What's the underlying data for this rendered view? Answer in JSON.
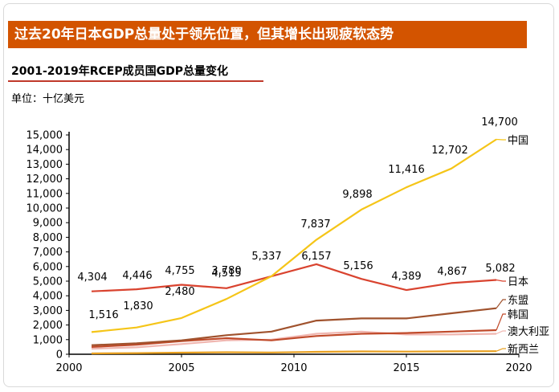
{
  "banner_title": "过去20年日本GDP总量处于领先位置，但其增长出现疲软态势",
  "subtitle": "2001-2019年RCEP成员国GDP总量变化",
  "unit_label": "单位：十亿美元",
  "chart_data": {
    "type": "line",
    "title": "2001-2019年RCEP成员国GDP总量变化",
    "ylabel": "单位：十亿美元",
    "xlim": [
      2000,
      2020
    ],
    "ylim": [
      0,
      15000
    ],
    "x_ticks": [
      2000,
      2005,
      2010,
      2015,
      2020
    ],
    "y_ticks": [
      0,
      1000,
      2000,
      3000,
      4000,
      5000,
      6000,
      7000,
      8000,
      9000,
      10000,
      11000,
      12000,
      13000,
      14000,
      15000
    ],
    "y_tick_labels": [
      "0",
      "1,000",
      "2,000",
      "3,000",
      "4,000",
      "5,000",
      "6,000",
      "7,000",
      "8,000",
      "9,000",
      "10,000",
      "11,000",
      "12,000",
      "13,000",
      "14,000",
      "15,000"
    ],
    "grid": false,
    "legend": "line-end labels, right",
    "series": [
      {
        "name": "中国",
        "color": "#f5c518",
        "x": [
          2001,
          2003,
          2005,
          2007,
          2009,
          2011,
          2013,
          2015,
          2017,
          2019
        ],
        "values": [
          1516,
          1830,
          2480,
          3780,
          5337,
          7837,
          9898,
          11416,
          12702,
          14700
        ],
        "labels": [
          "1,516",
          "1,830",
          "2,480",
          "3,780",
          "5,337",
          "7,837",
          "9,898",
          "11,416",
          "12,702",
          "14,700"
        ]
      },
      {
        "name": "日本",
        "color": "#d9432f",
        "x": [
          2001,
          2003,
          2005,
          2007,
          2009,
          2011,
          2013,
          2015,
          2017,
          2019
        ],
        "values": [
          4304,
          4446,
          4755,
          4515,
          5337,
          6157,
          5156,
          4389,
          4867,
          5082
        ],
        "labels": [
          "4,304",
          "4,446",
          "4,755",
          "4,515",
          "",
          "6,157",
          "5,156",
          "4,389",
          "4,867",
          "5,082"
        ]
      },
      {
        "name": "东盟",
        "color": "#a0522d",
        "x": [
          2001,
          2003,
          2005,
          2007,
          2009,
          2011,
          2013,
          2015,
          2017,
          2019
        ],
        "values": [
          620,
          750,
          950,
          1300,
          1550,
          2300,
          2450,
          2450,
          2800,
          3150
        ]
      },
      {
        "name": "韩国",
        "color": "#c04a2a",
        "x": [
          2001,
          2003,
          2005,
          2007,
          2009,
          2011,
          2013,
          2015,
          2017,
          2019
        ],
        "values": [
          500,
          650,
          900,
          1100,
          950,
          1250,
          1400,
          1450,
          1550,
          1650
        ]
      },
      {
        "name": "澳大利亚",
        "color": "#f0b6b0",
        "x": [
          2001,
          2003,
          2005,
          2007,
          2009,
          2011,
          2013,
          2015,
          2017,
          2019
        ],
        "values": [
          380,
          470,
          700,
          950,
          1000,
          1400,
          1550,
          1350,
          1350,
          1400
        ]
      },
      {
        "name": "新西兰",
        "color": "#e8a020",
        "x": [
          2001,
          2003,
          2005,
          2007,
          2009,
          2011,
          2013,
          2015,
          2017,
          2019
        ],
        "values": [
          55,
          75,
          110,
          135,
          120,
          165,
          190,
          180,
          200,
          210
        ]
      }
    ]
  }
}
